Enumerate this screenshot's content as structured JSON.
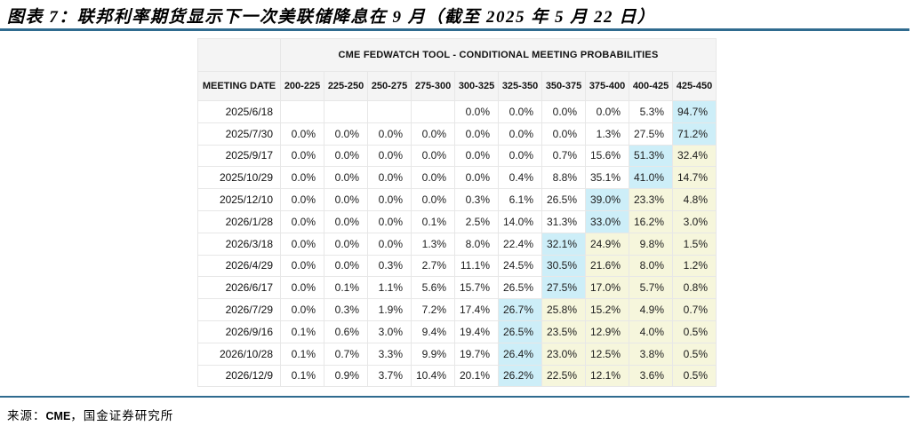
{
  "figure": {
    "title": "图表 7：联邦利率期货显示下一次美联储降息在 9 月（截至 2025 年 5 月 22 日）",
    "source_prefix": "来源：",
    "source_bold": "CME",
    "source_rest": "，国金证券研究所"
  },
  "table": {
    "main_header": "CME FEDWATCH TOOL - CONDITIONAL MEETING PROBABILITIES",
    "date_col_header": "MEETING DATE",
    "rate_columns": [
      "200-225",
      "225-250",
      "250-275",
      "275-300",
      "300-325",
      "325-350",
      "350-375",
      "375-400",
      "400-425",
      "425-450"
    ],
    "highlight_colors": {
      "blue": "#cdeef8",
      "yellow": "#f6f6dc"
    },
    "rows": [
      {
        "date": "2025/6/18",
        "values": [
          "",
          "",
          "",
          "",
          "0.0%",
          "0.0%",
          "0.0%",
          "0.0%",
          "5.3%",
          "94.7%"
        ],
        "highlights": [
          "",
          "",
          "",
          "",
          "",
          "",
          "",
          "",
          "",
          "b"
        ]
      },
      {
        "date": "2025/7/30",
        "values": [
          "0.0%",
          "0.0%",
          "0.0%",
          "0.0%",
          "0.0%",
          "0.0%",
          "0.0%",
          "1.3%",
          "27.5%",
          "71.2%"
        ],
        "highlights": [
          "",
          "",
          "",
          "",
          "",
          "",
          "",
          "",
          "",
          "b"
        ]
      },
      {
        "date": "2025/9/17",
        "values": [
          "0.0%",
          "0.0%",
          "0.0%",
          "0.0%",
          "0.0%",
          "0.0%",
          "0.7%",
          "15.6%",
          "51.3%",
          "32.4%"
        ],
        "highlights": [
          "",
          "",
          "",
          "",
          "",
          "",
          "",
          "",
          "b",
          "y"
        ]
      },
      {
        "date": "2025/10/29",
        "values": [
          "0.0%",
          "0.0%",
          "0.0%",
          "0.0%",
          "0.0%",
          "0.4%",
          "8.8%",
          "35.1%",
          "41.0%",
          "14.7%"
        ],
        "highlights": [
          "",
          "",
          "",
          "",
          "",
          "",
          "",
          "",
          "b",
          "y"
        ]
      },
      {
        "date": "2025/12/10",
        "values": [
          "0.0%",
          "0.0%",
          "0.0%",
          "0.0%",
          "0.3%",
          "6.1%",
          "26.5%",
          "39.0%",
          "23.3%",
          "4.8%"
        ],
        "highlights": [
          "",
          "",
          "",
          "",
          "",
          "",
          "",
          "b",
          "y",
          "y"
        ]
      },
      {
        "date": "2026/1/28",
        "values": [
          "0.0%",
          "0.0%",
          "0.0%",
          "0.1%",
          "2.5%",
          "14.0%",
          "31.3%",
          "33.0%",
          "16.2%",
          "3.0%"
        ],
        "highlights": [
          "",
          "",
          "",
          "",
          "",
          "",
          "",
          "b",
          "y",
          "y"
        ]
      },
      {
        "date": "2026/3/18",
        "values": [
          "0.0%",
          "0.0%",
          "0.0%",
          "1.3%",
          "8.0%",
          "22.4%",
          "32.1%",
          "24.9%",
          "9.8%",
          "1.5%"
        ],
        "highlights": [
          "",
          "",
          "",
          "",
          "",
          "",
          "b",
          "y",
          "y",
          "y"
        ]
      },
      {
        "date": "2026/4/29",
        "values": [
          "0.0%",
          "0.0%",
          "0.3%",
          "2.7%",
          "11.1%",
          "24.5%",
          "30.5%",
          "21.6%",
          "8.0%",
          "1.2%"
        ],
        "highlights": [
          "",
          "",
          "",
          "",
          "",
          "",
          "b",
          "y",
          "y",
          "y"
        ]
      },
      {
        "date": "2026/6/17",
        "values": [
          "0.0%",
          "0.1%",
          "1.1%",
          "5.6%",
          "15.7%",
          "26.5%",
          "27.5%",
          "17.0%",
          "5.7%",
          "0.8%"
        ],
        "highlights": [
          "",
          "",
          "",
          "",
          "",
          "",
          "b",
          "y",
          "y",
          "y"
        ]
      },
      {
        "date": "2026/7/29",
        "values": [
          "0.0%",
          "0.3%",
          "1.9%",
          "7.2%",
          "17.4%",
          "26.7%",
          "25.8%",
          "15.2%",
          "4.9%",
          "0.7%"
        ],
        "highlights": [
          "",
          "",
          "",
          "",
          "",
          "b",
          "y",
          "y",
          "y",
          "y"
        ]
      },
      {
        "date": "2026/9/16",
        "values": [
          "0.1%",
          "0.6%",
          "3.0%",
          "9.4%",
          "19.4%",
          "26.5%",
          "23.5%",
          "12.9%",
          "4.0%",
          "0.5%"
        ],
        "highlights": [
          "",
          "",
          "",
          "",
          "",
          "b",
          "y",
          "y",
          "y",
          "y"
        ]
      },
      {
        "date": "2026/10/28",
        "values": [
          "0.1%",
          "0.7%",
          "3.3%",
          "9.9%",
          "19.7%",
          "26.4%",
          "23.0%",
          "12.5%",
          "3.8%",
          "0.5%"
        ],
        "highlights": [
          "",
          "",
          "",
          "",
          "",
          "b",
          "y",
          "y",
          "y",
          "y"
        ]
      },
      {
        "date": "2026/12/9",
        "values": [
          "0.1%",
          "0.9%",
          "3.7%",
          "10.4%",
          "20.1%",
          "26.2%",
          "22.5%",
          "12.1%",
          "3.6%",
          "0.5%"
        ],
        "highlights": [
          "",
          "",
          "",
          "",
          "",
          "b",
          "y",
          "y",
          "y",
          "y"
        ]
      }
    ]
  }
}
